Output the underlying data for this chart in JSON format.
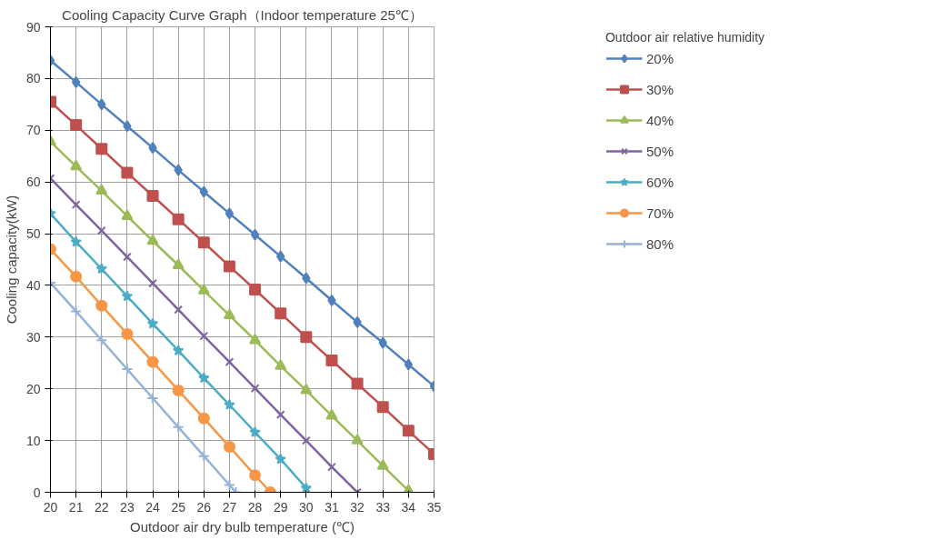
{
  "chart_data": {
    "type": "line",
    "title": "Cooling Capacity Curve Graph（Indoor temperature 25℃）",
    "xlabel": "Outdoor air dry bulb temperature (℃)",
    "ylabel": "Cooling capacity(kW)",
    "legend_title": "Outdoor air relative humidity",
    "xlim": [
      20,
      35
    ],
    "ylim": [
      0,
      90
    ],
    "xticks": [
      20,
      21,
      22,
      23,
      24,
      25,
      26,
      27,
      28,
      29,
      30,
      31,
      32,
      33,
      34,
      35
    ],
    "yticks": [
      0,
      10,
      20,
      30,
      40,
      50,
      60,
      70,
      80,
      90
    ],
    "grid": true,
    "legend": "right",
    "series": [
      {
        "name": "20%",
        "color": "#4f81bd",
        "marker": "diamond",
        "x": [
          20,
          21,
          22,
          23,
          24,
          25,
          26,
          27,
          28,
          29,
          30,
          31,
          32,
          33,
          34,
          35
        ],
        "values": [
          83.5,
          79.3,
          75,
          70.8,
          66.6,
          62.3,
          58.1,
          53.9,
          49.8,
          45.6,
          41.4,
          37.1,
          32.9,
          28.9,
          24.7,
          20.5
        ]
      },
      {
        "name": "30%",
        "color": "#c0504d",
        "marker": "square",
        "x": [
          20,
          21,
          22,
          23,
          24,
          25,
          26,
          27,
          28,
          29,
          30,
          31,
          32,
          33,
          34,
          35
        ],
        "values": [
          75.5,
          71,
          66.4,
          61.8,
          57.3,
          52.8,
          48.3,
          43.7,
          39.2,
          34.6,
          30,
          25.5,
          21,
          16.5,
          11.9,
          7.4
        ]
      },
      {
        "name": "40%",
        "color": "#9bbb59",
        "marker": "triangle",
        "x": [
          20,
          21,
          22,
          23,
          24,
          25,
          26,
          27,
          28,
          29,
          30,
          31,
          32,
          33,
          34
        ],
        "values": [
          67.8,
          63,
          58.3,
          53.4,
          48.6,
          43.9,
          39,
          34.2,
          29.4,
          24.4,
          19.7,
          14.8,
          10,
          5.1,
          0.3
        ]
      },
      {
        "name": "50%",
        "color": "#8064a2",
        "marker": "x",
        "x": [
          20,
          21,
          22,
          23,
          24,
          25,
          26,
          27,
          28,
          29,
          30,
          31,
          32
        ],
        "values": [
          60.7,
          55.6,
          50.6,
          45.5,
          40.4,
          35.3,
          30.2,
          25.2,
          20.1,
          15,
          10,
          4.9,
          0
        ]
      },
      {
        "name": "60%",
        "color": "#4bacc6",
        "marker": "star",
        "x": [
          20,
          21,
          22,
          23,
          24,
          25,
          26,
          27,
          28,
          29,
          30
        ],
        "values": [
          53.9,
          48.4,
          43.2,
          37.9,
          32.6,
          27.4,
          22.1,
          16.9,
          11.6,
          6.4,
          0.8
        ]
      },
      {
        "name": "70%",
        "color": "#f79646",
        "marker": "circle",
        "x": [
          20,
          21,
          22,
          23,
          24,
          25,
          26,
          27,
          28,
          28.6
        ],
        "values": [
          47,
          41.7,
          36.1,
          30.6,
          25.2,
          19.7,
          14.3,
          8.8,
          3.3,
          0
        ]
      },
      {
        "name": "80%",
        "color": "#95b3d7",
        "marker": "cross",
        "x": [
          20,
          21,
          22,
          23,
          24,
          25,
          26,
          27,
          27.25
        ],
        "values": [
          40.5,
          35,
          29.4,
          23.8,
          18.2,
          12.6,
          7.0,
          1.4,
          0
        ]
      }
    ]
  }
}
